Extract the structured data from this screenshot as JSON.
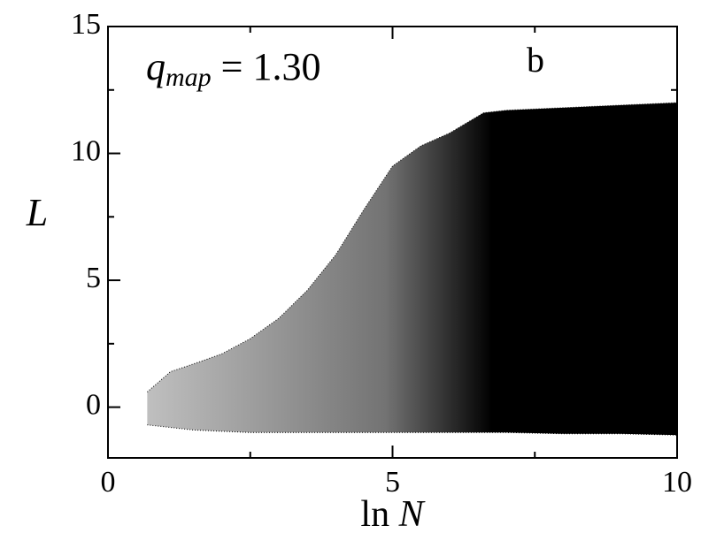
{
  "chart_data": {
    "type": "range-area",
    "xlabel": {
      "base": "ln ",
      "var": "N"
    },
    "ylabel": "L",
    "annotation": {
      "base": "q",
      "sub": "map",
      "rest": " = 1.30"
    },
    "panel_label": "b",
    "x": [
      0.69,
      1.1,
      1.5,
      2,
      2.5,
      3,
      3.5,
      4,
      4.5,
      5,
      5.5,
      6,
      6.6,
      7,
      8,
      9,
      10
    ],
    "upper": [
      0.6,
      1.4,
      1.7,
      2.1,
      2.7,
      3.5,
      4.6,
      6,
      7.8,
      9.5,
      10.3,
      10.8,
      11.6,
      11.7,
      11.8,
      11.9,
      12
    ],
    "lower": [
      -0.7,
      -0.8,
      -0.9,
      -0.95,
      -1,
      -1,
      -1,
      -1,
      -1,
      -1,
      -1,
      -1,
      -1,
      -1,
      -1.05,
      -1.05,
      -1.1
    ],
    "color": "#000000",
    "xlim": [
      0,
      10
    ],
    "xticks": [
      0,
      5,
      10
    ],
    "xminorticks": [
      2.5,
      7.5
    ],
    "ylim": [
      -2,
      15
    ],
    "yticks": [
      0,
      5,
      10,
      15
    ],
    "yminorticks": [
      2.5,
      7.5,
      12.5
    ]
  }
}
